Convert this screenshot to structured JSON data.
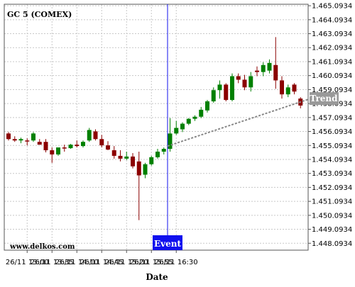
{
  "chart_data": {
    "type": "candlestick",
    "title": "GC 5 (COMEX)",
    "xlabel": "Date",
    "watermark": "www.delkos.com",
    "x_ticks": [
      "26/11 13:00",
      "26/11 13:35",
      "26/11 14:10",
      "26/11 14:45",
      "26/11 15:20",
      "26/11 15:55",
      "26/11 16:30"
    ],
    "y_ticks": [
      "1.465.0934",
      "1.464.0934",
      "1.463.0934",
      "1.462.0934",
      "1.461.0934",
      "1.460.0934",
      "1.459.0934",
      "1.458.0934",
      "1.457.0934",
      "1.456.0934",
      "1.455.0934",
      "1.454.0934",
      "1.453.0934",
      "1.452.0934",
      "1.451.0934",
      "1.450.0934",
      "1.449.0934",
      "1.448.0934"
    ],
    "ylim": [
      1447.6,
      1465.2
    ],
    "grid": true,
    "colors": {
      "up": "#008000",
      "down": "#8b0000",
      "trend": "#888888",
      "event": "#1010ee",
      "tag": "#999999"
    },
    "candles": [
      {
        "o": 1455.95,
        "h": 1456.05,
        "l": 1455.45,
        "c": 1455.55
      },
      {
        "o": 1455.55,
        "h": 1455.75,
        "l": 1455.35,
        "c": 1455.45
      },
      {
        "o": 1455.45,
        "h": 1455.65,
        "l": 1455.25,
        "c": 1455.55
      },
      {
        "o": 1455.45,
        "h": 1455.6,
        "l": 1455.1,
        "c": 1455.4
      },
      {
        "o": 1455.45,
        "h": 1456.05,
        "l": 1455.35,
        "c": 1455.95
      },
      {
        "o": 1455.35,
        "h": 1455.55,
        "l": 1455.15,
        "c": 1455.15
      },
      {
        "o": 1455.35,
        "h": 1455.55,
        "l": 1454.6,
        "c": 1454.75
      },
      {
        "o": 1454.75,
        "h": 1454.95,
        "l": 1453.85,
        "c": 1454.45
      },
      {
        "o": 1454.45,
        "h": 1454.95,
        "l": 1454.35,
        "c": 1454.95
      },
      {
        "o": 1454.95,
        "h": 1455.15,
        "l": 1454.65,
        "c": 1454.9
      },
      {
        "o": 1454.9,
        "h": 1455.2,
        "l": 1454.85,
        "c": 1455.15
      },
      {
        "o": 1455.15,
        "h": 1455.45,
        "l": 1454.95,
        "c": 1455.05
      },
      {
        "o": 1455.05,
        "h": 1455.45,
        "l": 1454.95,
        "c": 1455.35
      },
      {
        "o": 1455.45,
        "h": 1456.35,
        "l": 1455.35,
        "c": 1456.2
      },
      {
        "o": 1456.1,
        "h": 1456.25,
        "l": 1455.45,
        "c": 1455.55
      },
      {
        "o": 1455.55,
        "h": 1455.85,
        "l": 1454.95,
        "c": 1455.1
      },
      {
        "o": 1455.1,
        "h": 1455.4,
        "l": 1454.75,
        "c": 1454.8
      },
      {
        "o": 1454.75,
        "h": 1455.05,
        "l": 1454.15,
        "c": 1454.35
      },
      {
        "o": 1454.35,
        "h": 1454.75,
        "l": 1453.95,
        "c": 1454.15
      },
      {
        "o": 1454.15,
        "h": 1454.65,
        "l": 1454.05,
        "c": 1454.3
      },
      {
        "o": 1454.3,
        "h": 1454.55,
        "l": 1453.45,
        "c": 1453.6
      },
      {
        "o": 1453.95,
        "h": 1454.65,
        "l": 1449.75,
        "c": 1452.95
      },
      {
        "o": 1453.0,
        "h": 1453.85,
        "l": 1452.75,
        "c": 1453.75
      },
      {
        "o": 1453.75,
        "h": 1454.35,
        "l": 1453.65,
        "c": 1454.25
      },
      {
        "o": 1454.25,
        "h": 1454.85,
        "l": 1454.15,
        "c": 1454.65
      },
      {
        "o": 1454.65,
        "h": 1454.95,
        "l": 1454.45,
        "c": 1454.85
      },
      {
        "o": 1454.85,
        "h": 1457.05,
        "l": 1454.65,
        "c": 1455.95
      },
      {
        "o": 1455.95,
        "h": 1456.85,
        "l": 1455.85,
        "c": 1456.35
      },
      {
        "o": 1456.25,
        "h": 1456.75,
        "l": 1456.05,
        "c": 1456.65
      },
      {
        "o": 1456.65,
        "h": 1457.05,
        "l": 1456.55,
        "c": 1457.0
      },
      {
        "o": 1457.0,
        "h": 1457.25,
        "l": 1456.85,
        "c": 1457.15
      },
      {
        "o": 1457.15,
        "h": 1457.85,
        "l": 1457.05,
        "c": 1457.65
      },
      {
        "o": 1457.6,
        "h": 1458.35,
        "l": 1457.45,
        "c": 1458.25
      },
      {
        "o": 1458.25,
        "h": 1459.25,
        "l": 1458.15,
        "c": 1459.05
      },
      {
        "o": 1459.05,
        "h": 1459.75,
        "l": 1458.45,
        "c": 1459.45
      },
      {
        "o": 1459.45,
        "h": 1459.55,
        "l": 1458.25,
        "c": 1458.35
      },
      {
        "o": 1458.35,
        "h": 1460.25,
        "l": 1458.25,
        "c": 1460.05
      },
      {
        "o": 1460.05,
        "h": 1460.25,
        "l": 1459.55,
        "c": 1459.8
      },
      {
        "o": 1459.8,
        "h": 1460.15,
        "l": 1459.05,
        "c": 1459.25
      },
      {
        "o": 1459.25,
        "h": 1460.35,
        "l": 1458.95,
        "c": 1460.05
      },
      {
        "o": 1460.45,
        "h": 1460.75,
        "l": 1460.05,
        "c": 1460.35
      },
      {
        "o": 1460.35,
        "h": 1461.05,
        "l": 1460.05,
        "c": 1460.85
      },
      {
        "o": 1460.45,
        "h": 1461.25,
        "l": 1460.25,
        "c": 1461.0
      },
      {
        "o": 1460.85,
        "h": 1462.85,
        "l": 1459.15,
        "c": 1459.75
      },
      {
        "o": 1459.75,
        "h": 1460.05,
        "l": 1458.45,
        "c": 1458.75
      },
      {
        "o": 1458.75,
        "h": 1459.45,
        "l": 1458.55,
        "c": 1459.25
      },
      {
        "o": 1459.45,
        "h": 1459.55,
        "l": 1458.75,
        "c": 1458.95
      },
      {
        "o": 1458.45,
        "h": 1458.55,
        "l": 1457.75,
        "c": 1457.95
      }
    ],
    "event": {
      "label": "Event",
      "candle_index": 25.6
    },
    "trend": {
      "label": "Trend",
      "start": {
        "candle_index": 25.6,
        "value": 1455.05
      },
      "end": {
        "candle_index": 48.3,
        "value": 1458.4
      }
    }
  }
}
